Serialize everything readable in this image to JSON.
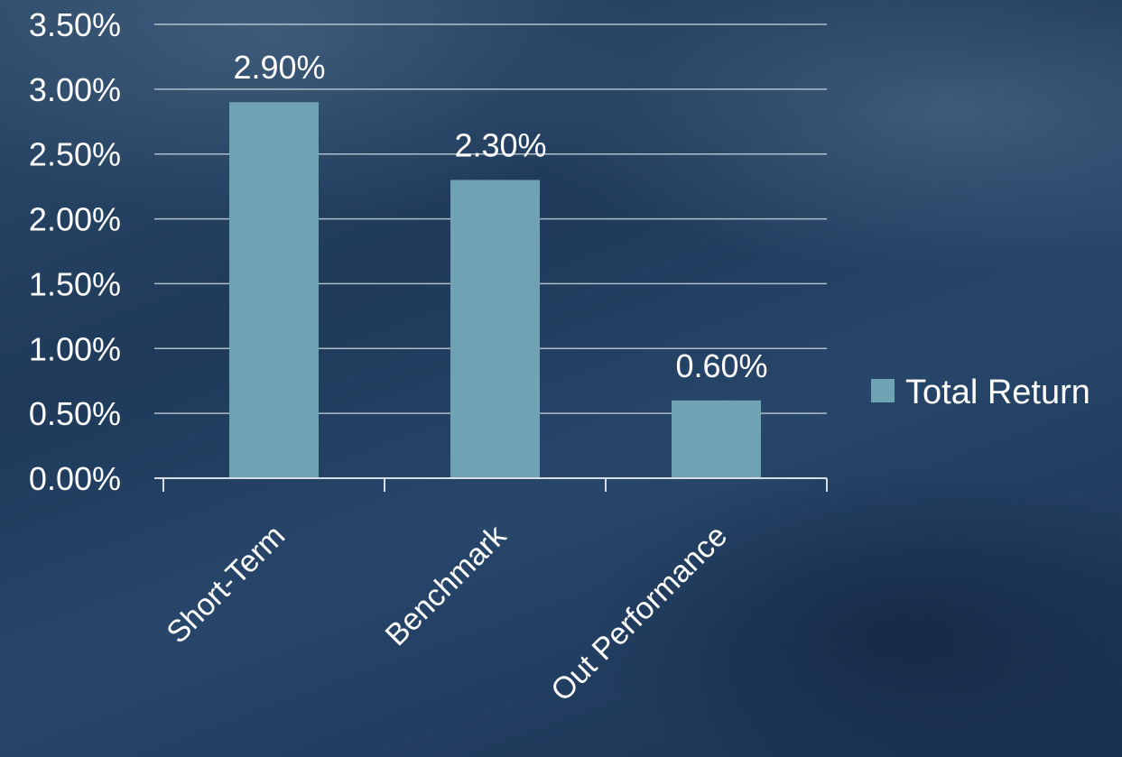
{
  "chart_data": {
    "type": "bar",
    "categories": [
      "Short-Term",
      "Benchmark",
      "Out Performance"
    ],
    "series": [
      {
        "name": "Total Return",
        "values": [
          2.9,
          2.3,
          0.6
        ],
        "data_labels": [
          "2.90%",
          "2.30%",
          "0.60%"
        ]
      }
    ],
    "title": "",
    "xlabel": "",
    "ylabel": "",
    "ylim": [
      0,
      3.5
    ],
    "yticks": [
      0,
      0.5,
      1.0,
      1.5,
      2.0,
      2.5,
      3.0,
      3.5
    ],
    "ytick_labels": [
      "0.00%",
      "0.50%",
      "1.00%",
      "1.50%",
      "2.00%",
      "2.50%",
      "3.00%",
      "3.50%"
    ],
    "grid": true,
    "legend_position": "right",
    "colors": {
      "bar": "#6fa3b3",
      "text": "#ffffff"
    }
  }
}
